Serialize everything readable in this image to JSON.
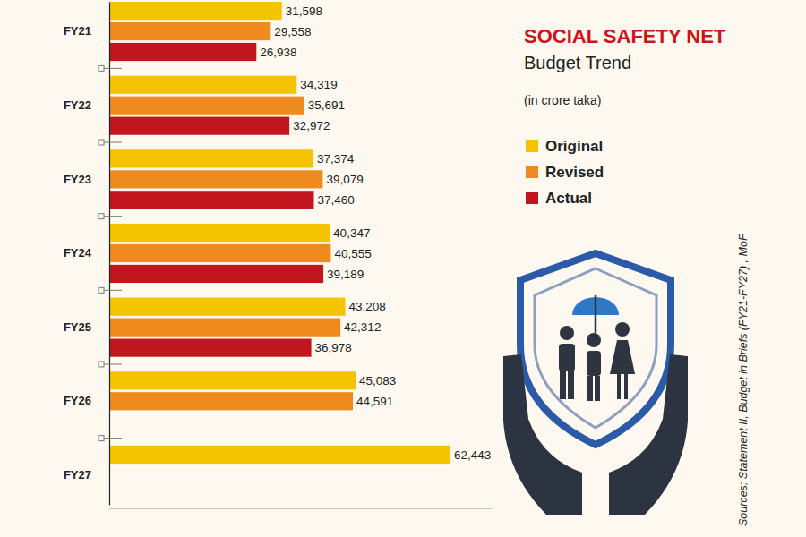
{
  "chart_data": {
    "type": "bar",
    "orientation": "horizontal",
    "title": "SOCIAL SAFETY NET",
    "subtitle": "Budget Trend",
    "annotations": [
      "(in crore taka)",
      "Sources: Statement II, Budget in Briefs (FY21-FY27) , MoF"
    ],
    "categories": [
      "FY21",
      "FY22",
      "FY23",
      "FY24",
      "FY25",
      "FY26",
      "FY27"
    ],
    "series": [
      {
        "name": "Original",
        "color": "#f5c400",
        "values": [
          31598,
          34319,
          37374,
          40347,
          43208,
          45083,
          62443
        ],
        "value_labels": [
          "31,598",
          "34,319",
          "37,374",
          "40,347",
          "43,208",
          "45,083",
          "62,443"
        ]
      },
      {
        "name": "Revised",
        "color": "#ef8a1e",
        "values": [
          29558,
          35691,
          39079,
          40555,
          42312,
          44591,
          null
        ],
        "value_labels": [
          "29,558",
          "35,691",
          "39,079",
          "40,555",
          "42,312",
          "44,591",
          null
        ]
      },
      {
        "name": "Actual",
        "color": "#c2161e",
        "values": [
          26938,
          32972,
          37460,
          39189,
          36978,
          null,
          null
        ],
        "value_labels": [
          "26,938",
          "32,972",
          "37,460",
          "39,189",
          "36,978",
          null,
          null
        ]
      }
    ],
    "xlim": [
      0,
      70000
    ],
    "grid": false,
    "data_labels": true,
    "tick_labels": "y",
    "legend": "upper right"
  }
}
